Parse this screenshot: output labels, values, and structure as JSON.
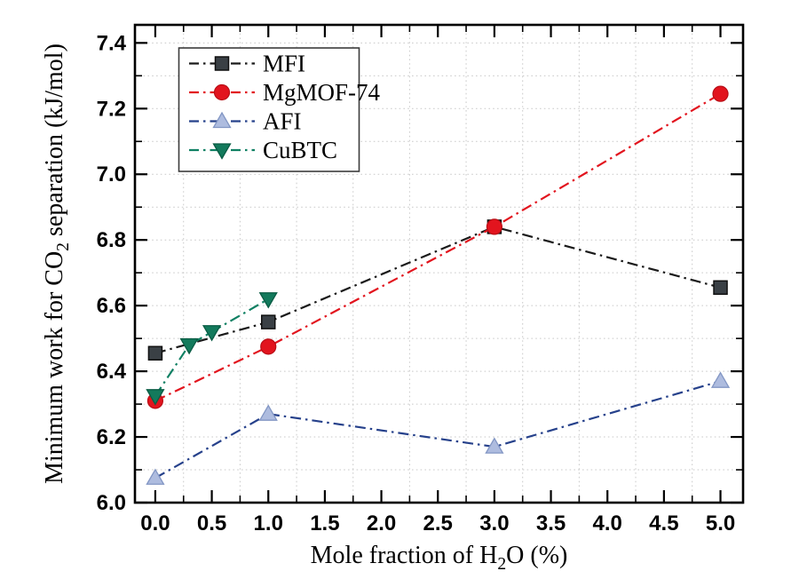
{
  "figure": {
    "background": "#ffffff",
    "frame_color": "#000000",
    "grid_color": "#c9c9c9"
  },
  "chart_data": {
    "type": "line",
    "title": "",
    "xlabel_segments": [
      {
        "t": "Mole fraction of H"
      },
      {
        "t": "2",
        "sub": true
      },
      {
        "t": "O (%)"
      }
    ],
    "ylabel_segments": [
      {
        "t": "Minimum work for CO"
      },
      {
        "t": "2",
        "sub": true
      },
      {
        "t": " separation (kJ/mol)"
      }
    ],
    "xlim": [
      -0.18,
      5.2
    ],
    "ylim": [
      6.0,
      7.455
    ],
    "x_major_ticks": [
      0.0,
      0.5,
      1.0,
      1.5,
      2.0,
      2.5,
      3.0,
      3.5,
      4.0,
      4.5,
      5.0
    ],
    "x_tick_labels": [
      "0.0",
      "0.5",
      "1.0",
      "1.5",
      "2.0",
      "2.5",
      "3.0",
      "3.5",
      "4.0",
      "4.5",
      "5.0"
    ],
    "x_minor_ticks": [
      0.25,
      0.75,
      1.25,
      1.75,
      2.25,
      2.75,
      3.25,
      3.75,
      4.25,
      4.75
    ],
    "y_major_ticks": [
      6.0,
      6.2,
      6.4,
      6.6,
      6.8,
      7.0,
      7.2,
      7.4
    ],
    "y_tick_labels": [
      "6.0",
      "6.2",
      "6.4",
      "6.6",
      "6.8",
      "7.0",
      "7.2",
      "7.4"
    ],
    "y_minor_ticks": [
      6.1,
      6.3,
      6.5,
      6.7,
      6.9,
      7.1,
      7.3
    ],
    "grid": {
      "style": "dotted",
      "color": "#c9c9c9",
      "vertical_lines": [
        0.25,
        0.75,
        1.25,
        1.75,
        2.25,
        2.75,
        3.25,
        3.75,
        4.25,
        4.75
      ],
      "horizontal_lines": [
        6.1,
        6.2,
        6.3,
        6.4,
        6.5,
        6.6,
        6.7,
        6.8,
        6.9,
        7.0,
        7.1,
        7.2,
        7.3,
        7.4
      ]
    },
    "series": [
      {
        "name": "MFI",
        "marker": "square",
        "line_color": "#1a1a1a",
        "marker_fill": "#3a4045",
        "marker_edge": "#101010",
        "x": [
          0.0,
          1.0,
          3.0,
          5.0
        ],
        "y": [
          6.455,
          6.55,
          6.84,
          6.655
        ]
      },
      {
        "name": "MgMOF-74",
        "marker": "circle",
        "line_color": "#e2141e",
        "marker_fill": "#e2141e",
        "marker_edge": "#b90e16",
        "x": [
          0.0,
          1.0,
          3.0,
          5.0
        ],
        "y": [
          6.31,
          6.475,
          6.84,
          7.245
        ]
      },
      {
        "name": "AFI",
        "marker": "triangle-up",
        "line_color": "#26418b",
        "marker_fill": "#aebcdf",
        "marker_edge": "#8296c4",
        "x": [
          0.0,
          1.0,
          3.0,
          5.0
        ],
        "y": [
          6.075,
          6.27,
          6.17,
          6.37
        ]
      },
      {
        "name": "CuBTC",
        "marker": "triangle-down",
        "line_color": "#108063",
        "marker_fill": "#137a5c",
        "marker_edge": "#0a5c44",
        "x": [
          0.0,
          0.3,
          0.5,
          1.0
        ],
        "y": [
          6.325,
          6.48,
          6.52,
          6.62
        ]
      }
    ],
    "legend": {
      "position": "upper-left",
      "entries": [
        "MFI",
        "MgMOF-74",
        "AFI",
        "CuBTC"
      ]
    }
  }
}
